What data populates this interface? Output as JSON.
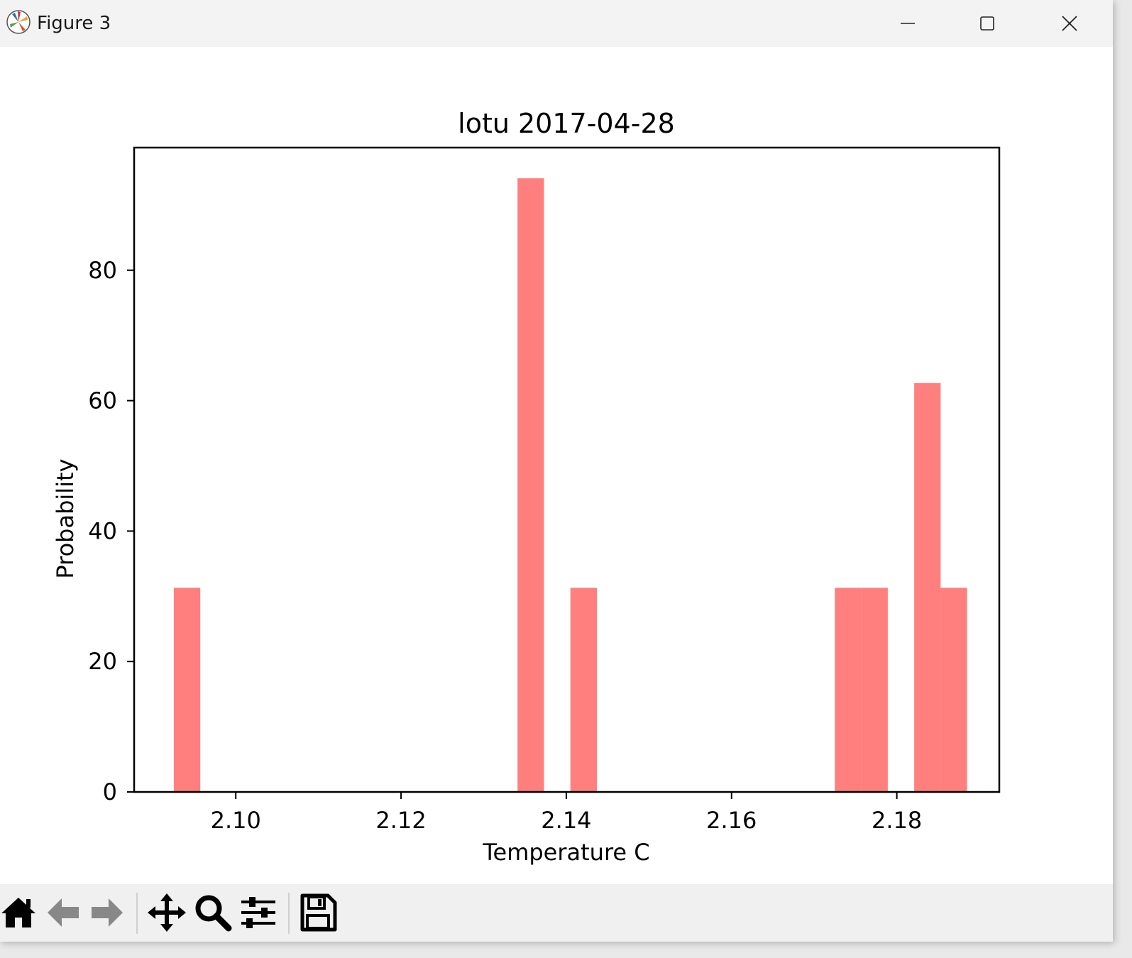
{
  "window": {
    "title": "Figure 3",
    "app_icon": "matplotlib-icon",
    "controls": [
      "minimize-icon",
      "maximize-icon",
      "close-icon"
    ]
  },
  "toolbar": {
    "tools": [
      "home-icon",
      "back-icon",
      "forward-icon",
      "pan-icon",
      "zoom-icon",
      "configure-subplots-icon",
      "save-icon"
    ]
  },
  "colors": {
    "bar": "#ff7f7f",
    "titlebar": "#f3f3f3",
    "toolbar": "#f0f0f0",
    "icon_active": "#000000",
    "icon_disabled": "#888888"
  },
  "chart_data": {
    "type": "bar",
    "title": "lotu 2017-04-28",
    "xlabel": "Temperature C",
    "ylabel": "Probability",
    "xlim": [
      2.0877,
      2.1924
    ],
    "ylim": [
      0,
      98.8
    ],
    "xticks": [
      2.1,
      2.12,
      2.14,
      2.16,
      2.18
    ],
    "xtick_labels": [
      "2.10",
      "2.12",
      "2.14",
      "2.16",
      "2.18"
    ],
    "yticks": [
      0,
      20,
      40,
      60,
      80
    ],
    "ytick_labels": [
      "0",
      "20",
      "40",
      "60",
      "80"
    ],
    "grid": false,
    "bins": [
      {
        "x0": 2.0925,
        "x1": 2.0957,
        "value": 31.3
      },
      {
        "x0": 2.1341,
        "x1": 2.1373,
        "value": 94.1
      },
      {
        "x0": 2.1405,
        "x1": 2.1437,
        "value": 31.3
      },
      {
        "x0": 2.1725,
        "x1": 2.1757,
        "value": 31.3
      },
      {
        "x0": 2.1757,
        "x1": 2.1789,
        "value": 31.3
      },
      {
        "x0": 2.1821,
        "x1": 2.1853,
        "value": 62.7
      },
      {
        "x0": 2.1853,
        "x1": 2.1885,
        "value": 31.3
      }
    ]
  }
}
